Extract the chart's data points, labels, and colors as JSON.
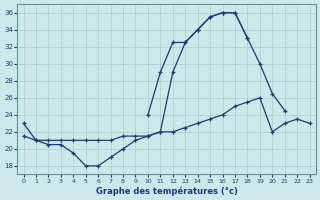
{
  "xlabel": "Graphe des températures (°c)",
  "background_color": "#cce8e8",
  "grid_color": "#aacccc",
  "line_color": "#1a3a7a",
  "xlim": [
    -0.5,
    23.5
  ],
  "ylim": [
    17,
    37
  ],
  "yticks": [
    18,
    20,
    22,
    24,
    26,
    28,
    30,
    32,
    34,
    36
  ],
  "xticks": [
    0,
    1,
    2,
    3,
    4,
    5,
    6,
    7,
    8,
    9,
    10,
    11,
    12,
    13,
    14,
    15,
    16,
    17,
    18,
    19,
    20,
    21,
    22,
    23
  ],
  "hours": [
    0,
    1,
    2,
    3,
    4,
    5,
    6,
    7,
    8,
    9,
    10,
    11,
    12,
    13,
    14,
    15,
    16,
    17,
    18,
    19,
    20,
    21,
    22,
    23
  ],
  "line1_x": [
    0,
    1,
    2,
    3,
    4,
    5,
    6,
    7,
    8,
    9,
    10,
    11,
    12,
    13,
    14,
    15,
    16,
    17,
    18
  ],
  "line1_y": [
    23,
    21,
    20.5,
    20.5,
    19.5,
    18,
    18,
    19,
    20,
    21,
    21.5,
    22,
    29,
    32.5,
    34,
    35.5,
    36,
    36,
    33
  ],
  "line2_x": [
    10,
    11,
    12,
    13,
    14,
    15,
    16,
    17,
    18,
    19,
    20,
    21
  ],
  "line2_y": [
    24,
    29,
    32.5,
    32.5,
    34,
    35.5,
    36,
    36,
    33,
    30,
    26.5,
    24.5
  ],
  "line3_x": [
    0,
    1,
    2,
    3,
    4,
    5,
    6,
    7,
    8,
    9,
    10,
    11,
    12,
    13,
    14,
    15,
    16,
    17,
    18,
    19,
    20,
    21,
    22,
    23
  ],
  "line3_y": [
    21.5,
    21,
    21,
    21,
    21,
    21,
    21,
    21,
    21.5,
    21.5,
    21.5,
    22,
    22,
    22.5,
    23,
    23.5,
    24,
    25,
    25.5,
    26,
    22,
    23,
    23.5,
    23
  ]
}
